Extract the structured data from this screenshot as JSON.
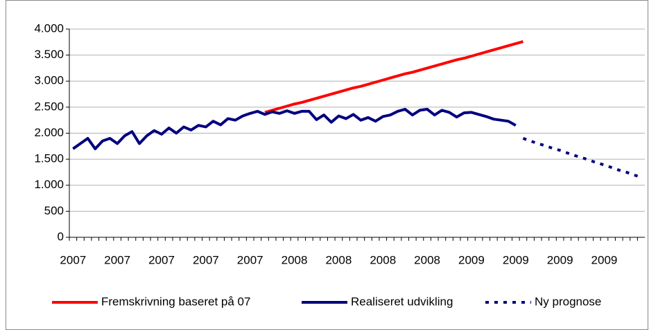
{
  "chart_data": {
    "type": "line",
    "categories": [
      "2007",
      null,
      null,
      null,
      null,
      null,
      "2007",
      null,
      null,
      null,
      null,
      null,
      "2007",
      null,
      null,
      null,
      null,
      null,
      "2007",
      null,
      null,
      null,
      null,
      null,
      "2007",
      null,
      null,
      null,
      null,
      null,
      "2008",
      null,
      null,
      null,
      null,
      null,
      "2008",
      null,
      null,
      null,
      null,
      null,
      "2008",
      null,
      null,
      null,
      null,
      null,
      "2008",
      null,
      null,
      null,
      null,
      null,
      "2009",
      null,
      null,
      null,
      null,
      null,
      "2009",
      null,
      null,
      null,
      null,
      null,
      "2009",
      null,
      null,
      null,
      null,
      null,
      "2009",
      null,
      null,
      null,
      null,
      null
    ],
    "series": [
      {
        "name": "Fremskrivning baseret på 07",
        "color": "#ff0000",
        "dash": "solid",
        "values": [
          null,
          null,
          null,
          null,
          null,
          null,
          null,
          null,
          null,
          null,
          null,
          null,
          null,
          null,
          null,
          null,
          null,
          null,
          null,
          null,
          null,
          null,
          null,
          null,
          null,
          null,
          2400,
          2440,
          2480,
          2520,
          2560,
          2590,
          2630,
          2670,
          2710,
          2750,
          2790,
          2830,
          2870,
          2900,
          2940,
          2980,
          3020,
          3060,
          3100,
          3140,
          3170,
          3210,
          3250,
          3290,
          3330,
          3370,
          3410,
          3440,
          3480,
          3520,
          3560,
          3600,
          3640,
          3680,
          3720,
          3760,
          null,
          null,
          null,
          null,
          null,
          null,
          null,
          null,
          null,
          null,
          null,
          null,
          null,
          null,
          null,
          null
        ]
      },
      {
        "name": "Realiseret udvikling",
        "color": "#000080",
        "dash": "solid",
        "values": [
          1700,
          1800,
          1900,
          1700,
          1850,
          1900,
          1800,
          1950,
          2030,
          1800,
          1950,
          2050,
          1980,
          2100,
          2000,
          2120,
          2060,
          2150,
          2120,
          2230,
          2160,
          2280,
          2250,
          2330,
          2380,
          2420,
          2360,
          2410,
          2380,
          2430,
          2380,
          2420,
          2420,
          2260,
          2350,
          2210,
          2330,
          2280,
          2360,
          2250,
          2300,
          2230,
          2320,
          2350,
          2420,
          2460,
          2350,
          2440,
          2460,
          2350,
          2440,
          2400,
          2310,
          2390,
          2400,
          2360,
          2320,
          2270,
          2250,
          2230,
          2150,
          null,
          null,
          null,
          null,
          null,
          null,
          null,
          null,
          null,
          null,
          null,
          null,
          null,
          null,
          null,
          null,
          null
        ]
      },
      {
        "name": "Ny prognose",
        "color": "#000080",
        "dash": "dashed",
        "values": [
          null,
          null,
          null,
          null,
          null,
          null,
          null,
          null,
          null,
          null,
          null,
          null,
          null,
          null,
          null,
          null,
          null,
          null,
          null,
          null,
          null,
          null,
          null,
          null,
          null,
          null,
          null,
          null,
          null,
          null,
          null,
          null,
          null,
          null,
          null,
          null,
          null,
          null,
          null,
          null,
          null,
          null,
          null,
          null,
          null,
          null,
          null,
          null,
          null,
          null,
          null,
          null,
          null,
          null,
          null,
          null,
          null,
          null,
          null,
          null,
          null,
          1900,
          1850,
          1800,
          1760,
          1710,
          1670,
          1620,
          1570,
          1530,
          1480,
          1430,
          1390,
          1340,
          1290,
          1250,
          1200,
          1150
        ]
      }
    ],
    "ylim": [
      0,
      4000
    ],
    "yticks": [
      0,
      500,
      {
        "value": 1000,
        "label": "1.000"
      },
      {
        "value": 1500,
        "label": "1.500"
      },
      {
        "value": 2000,
        "label": "2.000"
      },
      {
        "value": 2500,
        "label": "2.500"
      },
      {
        "value": 3000,
        "label": "3.000"
      },
      {
        "value": 3500,
        "label": "3.500"
      },
      {
        "value": 4000,
        "label": "4.000"
      }
    ],
    "grid": true,
    "legend": "bottom"
  }
}
